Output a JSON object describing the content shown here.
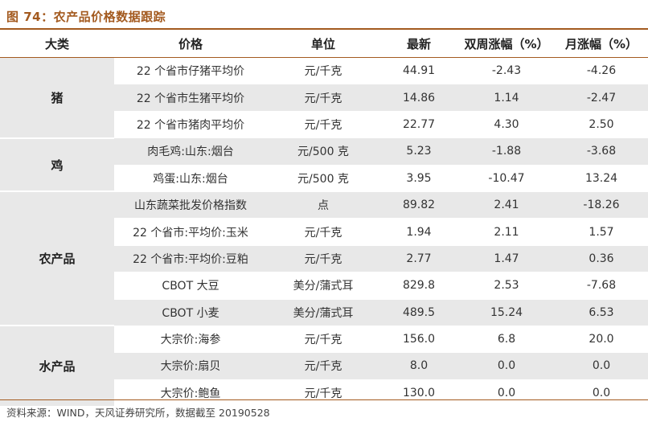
{
  "title": "图 74：农产品价格数据跟踪",
  "headers": [
    "大类",
    "价格",
    "单位",
    "最新",
    "双周涨幅（%）",
    "月涨幅（%）"
  ],
  "groups": [
    {
      "category": "猪",
      "rows": [
        {
          "name": "22 个省市仔猪平均价",
          "unit": "元/千克",
          "latest": "44.91",
          "biweekly": "-2.43",
          "monthly": "-4.26"
        },
        {
          "name": "22 个省市生猪平均价",
          "unit": "元/千克",
          "latest": "14.86",
          "biweekly": "1.14",
          "monthly": "-2.47"
        },
        {
          "name": "22 个省市猪肉平均价",
          "unit": "元/千克",
          "latest": "22.77",
          "biweekly": "4.30",
          "monthly": "2.50"
        }
      ]
    },
    {
      "category": "鸡",
      "rows": [
        {
          "name": "肉毛鸡:山东:烟台",
          "unit": "元/500 克",
          "latest": "5.23",
          "biweekly": "-1.88",
          "monthly": "-3.68"
        },
        {
          "name": "鸡蛋:山东:烟台",
          "unit": "元/500 克",
          "latest": "3.95",
          "biweekly": "-10.47",
          "monthly": "13.24"
        }
      ]
    },
    {
      "category": "农产品",
      "rows": [
        {
          "name": "山东蔬菜批发价格指数",
          "unit": "点",
          "latest": "89.82",
          "biweekly": "2.41",
          "monthly": "-18.26"
        },
        {
          "name": "22 个省市:平均价:玉米",
          "unit": "元/千克",
          "latest": "1.94",
          "biweekly": "2.11",
          "monthly": "1.57"
        },
        {
          "name": "22 个省市:平均价:豆粕",
          "unit": "元/千克",
          "latest": "2.77",
          "biweekly": "1.47",
          "monthly": "0.36"
        },
        {
          "name": "CBOT 大豆",
          "unit": "美分/蒲式耳",
          "latest": "829.8",
          "biweekly": "2.53",
          "monthly": "-7.68"
        },
        {
          "name": "CBOT 小麦",
          "unit": "美分/蒲式耳",
          "latest": "489.5",
          "biweekly": "15.24",
          "monthly": "6.53"
        }
      ]
    },
    {
      "category": "水产品",
      "rows": [
        {
          "name": "大宗价:海参",
          "unit": "元/千克",
          "latest": "156.0",
          "biweekly": "6.8",
          "monthly": "20.0"
        },
        {
          "name": "大宗价:扇贝",
          "unit": "元/千克",
          "latest": "8.0",
          "biweekly": "0.0",
          "monthly": "0.0"
        },
        {
          "name": "大宗价:鲍鱼",
          "unit": "元/千克",
          "latest": "130.0",
          "biweekly": "0.0",
          "monthly": "0.0"
        }
      ]
    }
  ],
  "footer": "资料来源：WIND，天风证券研究所，数据截至 20190528"
}
